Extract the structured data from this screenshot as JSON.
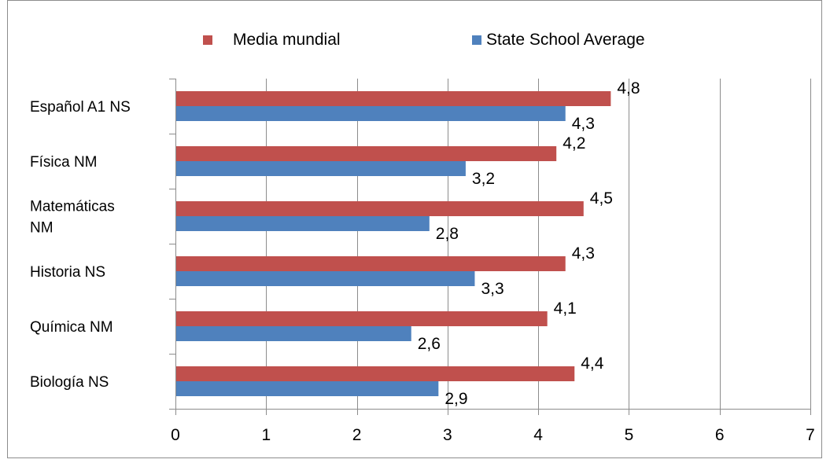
{
  "chart_data": {
    "type": "bar",
    "orientation": "horizontal",
    "categories": [
      "Español A1 NS",
      "Física NM",
      "Matemáticas NM",
      "Historia NS",
      "Química NM",
      "Biología NS"
    ],
    "category_label_lines": [
      [
        "Español A1 NS"
      ],
      [
        "Física NM"
      ],
      [
        "Matemáticas",
        "NM"
      ],
      [
        "Historia NS"
      ],
      [
        "Química NM"
      ],
      [
        "Biología NS"
      ]
    ],
    "series": [
      {
        "name": "Media mundial",
        "color": "#c0504d",
        "values": [
          4.8,
          4.2,
          4.5,
          4.3,
          4.1,
          4.4
        ],
        "labels": [
          "4,8",
          "4,2",
          "4,5",
          "4,3",
          "4,1",
          "4,4"
        ]
      },
      {
        "name": "State School Average",
        "color": "#4f81bd",
        "values": [
          4.3,
          3.2,
          2.8,
          3.3,
          2.6,
          2.9
        ],
        "labels": [
          "4,3",
          "3,2",
          "2,8",
          "3,3",
          "2,6",
          "2,9"
        ]
      }
    ],
    "x_ticks": [
      "0",
      "1",
      "2",
      "3",
      "4",
      "5",
      "6",
      "7"
    ],
    "xlim": [
      0,
      7
    ],
    "title": "",
    "xlabel": "",
    "ylabel": "",
    "grid": "vertical",
    "legend_position": "top"
  },
  "colors": {
    "frame": "#8c8c8c",
    "grid": "#8c8c8c",
    "axis": "#8c8c8c"
  }
}
